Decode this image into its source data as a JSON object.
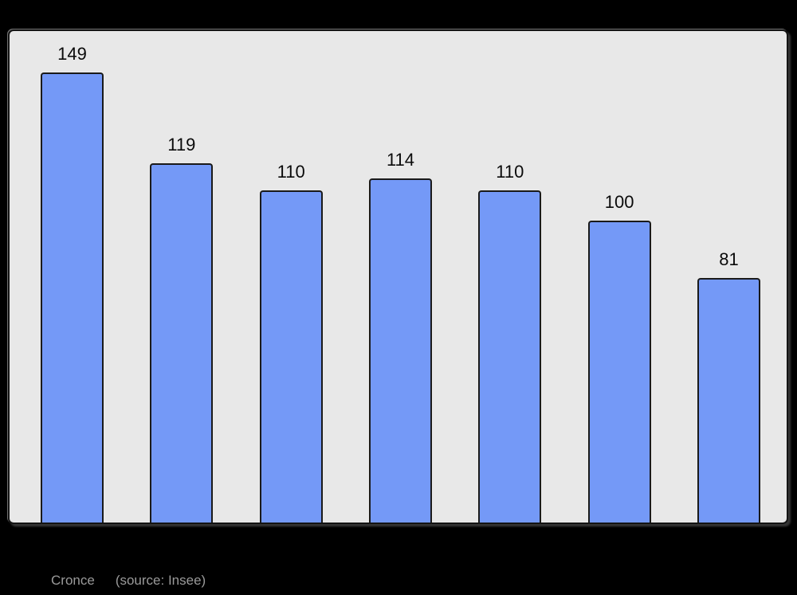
{
  "window": {
    "background": "#000000"
  },
  "chart": {
    "plot_bg": "#E8E8E8",
    "frame_border_color": "#141414",
    "bar_fill": "#7499F7",
    "bar_border": "#1A1A1A",
    "value_label_color": "#0A0A0A"
  },
  "caption": {
    "commune": "Cronce",
    "source": "(source: Insee)",
    "color": "#9A9A9A"
  },
  "chart_data": {
    "type": "bar",
    "title": "",
    "xlabel": "",
    "ylabel": "",
    "values": [
      149,
      119,
      110,
      114,
      110,
      100,
      81
    ],
    "data_labels": [
      "149",
      "119",
      "110",
      "114",
      "110",
      "100",
      "81"
    ],
    "categories": [
      "",
      "",
      "",
      "",
      "",
      "",
      ""
    ],
    "ylim": [
      0,
      163
    ],
    "grid": false,
    "legend": false,
    "annotations": [
      "Cronce",
      "(source: Insee)"
    ]
  }
}
